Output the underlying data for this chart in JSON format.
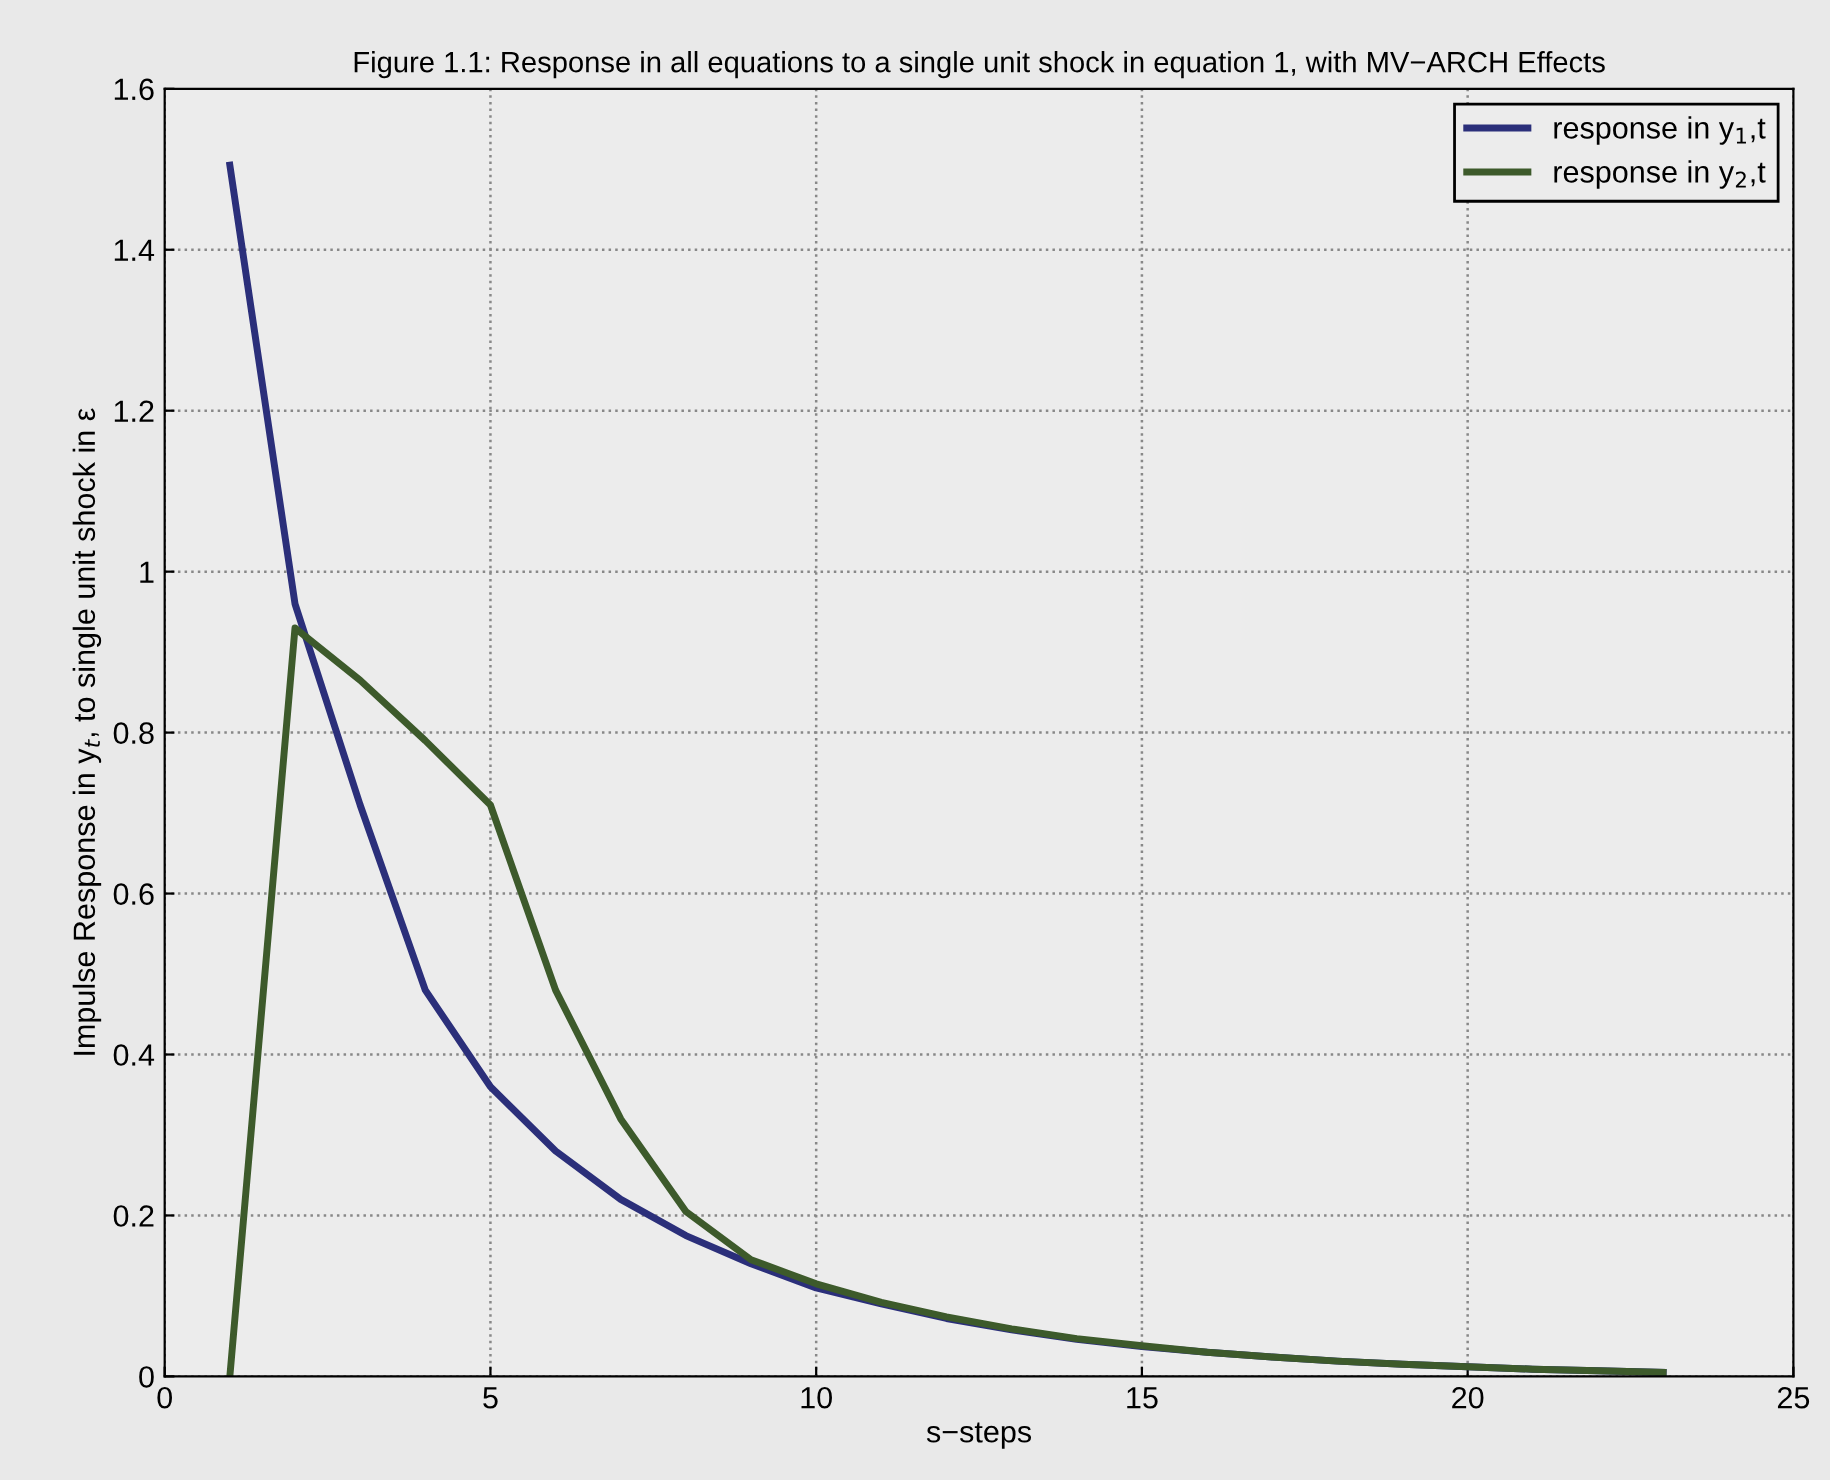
{
  "chart_data": {
    "type": "line",
    "title": "Figure 1.1: Response in all equations to a single unit shock in equation 1, with MV−ARCH Effects",
    "xlabel": "s−steps",
    "ylabel": "Impulse Response in y$_{t}$, to single unit shock in ε",
    "x": [
      1,
      2,
      3,
      4,
      5,
      6,
      7,
      8,
      9,
      10,
      11,
      12,
      13,
      14,
      15,
      16,
      17,
      18,
      19,
      20,
      21,
      22,
      23
    ],
    "series": [
      {
        "name": "response in y$_{1}$,t",
        "color": "#2b2f7a",
        "values": [
          1.505,
          0.96,
          0.71,
          0.48,
          0.36,
          0.28,
          0.22,
          0.175,
          0.14,
          0.11,
          0.09,
          0.072,
          0.058,
          0.046,
          0.037,
          0.03,
          0.024,
          0.019,
          0.015,
          0.012,
          0.009,
          0.007,
          0.005
        ]
      },
      {
        "name": "response in y$_{2}$,t",
        "color": "#3d5a2b",
        "values": [
          0,
          0.93,
          0.865,
          0.79,
          0.71,
          0.48,
          0.32,
          0.205,
          0.145,
          0.115,
          0.092,
          0.074,
          0.059,
          0.047,
          0.038,
          0.03,
          0.024,
          0.019,
          0.015,
          0.012,
          0.009,
          0.007,
          0.005
        ]
      }
    ],
    "xlim": [
      0,
      25
    ],
    "xticks": [
      0,
      5,
      10,
      15,
      20,
      25
    ],
    "ylim": [
      0,
      1.6
    ],
    "yticks": [
      0,
      0.2,
      0.4,
      0.6,
      0.8,
      1,
      1.2,
      1.4,
      1.6
    ],
    "grid": true,
    "legend": "top right",
    "marker": "none",
    "line_style": "solid"
  }
}
